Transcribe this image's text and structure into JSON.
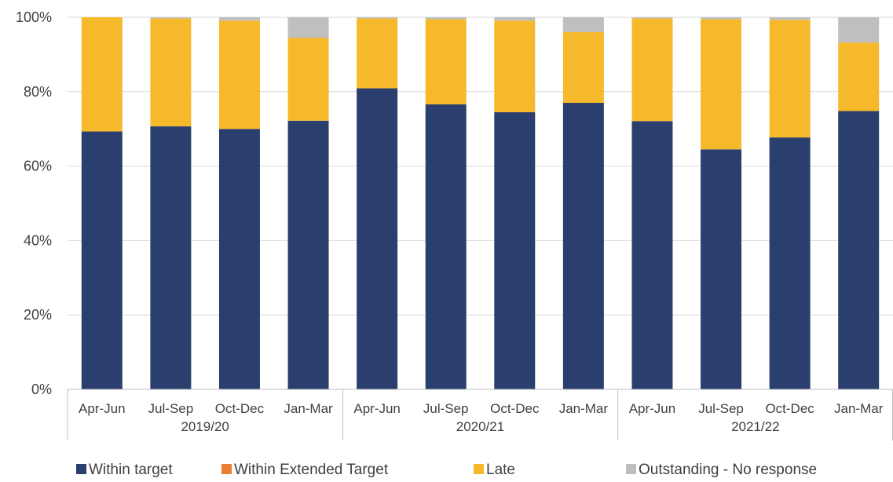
{
  "chart_data": {
    "type": "bar",
    "stacked": true,
    "percent_stacked": true,
    "title": "",
    "xlabel": "",
    "ylabel": "",
    "ylim": [
      0,
      100
    ],
    "y_ticks": [
      "0%",
      "20%",
      "40%",
      "60%",
      "80%",
      "100%"
    ],
    "y_tick_values": [
      0,
      20,
      40,
      60,
      80,
      100
    ],
    "grid": true,
    "legend_position": "bottom",
    "categories": [
      "Apr-Jun",
      "Jul-Sep",
      "Oct-Dec",
      "Jan-Mar",
      "Apr-Jun",
      "Jul-Sep",
      "Oct-Dec",
      "Jan-Mar",
      "Apr-Jun",
      "Jul-Sep",
      "Oct-Dec",
      "Jan-Mar"
    ],
    "groups": [
      {
        "label": "2019/20",
        "count": 4
      },
      {
        "label": "2020/21",
        "count": 4
      },
      {
        "label": "2021/22",
        "count": 4
      }
    ],
    "series": [
      {
        "name": "Within target",
        "color": "#2b3f6e",
        "values": [
          69.3,
          70.7,
          70.0,
          72.2,
          80.9,
          76.6,
          74.5,
          77.0,
          72.1,
          64.5,
          67.7,
          74.8
        ]
      },
      {
        "name": "Within Extended Target",
        "color": "#ed7d31",
        "values": [
          0,
          0,
          0,
          0,
          0,
          0,
          0,
          0,
          0,
          0,
          0,
          0
        ]
      },
      {
        "name": "Late",
        "color": "#f6b92b",
        "values": [
          30.7,
          29.0,
          29.1,
          22.3,
          18.8,
          22.9,
          24.6,
          19.0,
          27.6,
          35.0,
          31.6,
          18.4
        ]
      },
      {
        "name": "Outstanding - No response",
        "color": "#bfbfbf",
        "values": [
          0,
          0.3,
          0.9,
          5.5,
          0.3,
          0.5,
          0.9,
          4.0,
          0.3,
          0.5,
          0.7,
          6.8
        ]
      }
    ]
  }
}
